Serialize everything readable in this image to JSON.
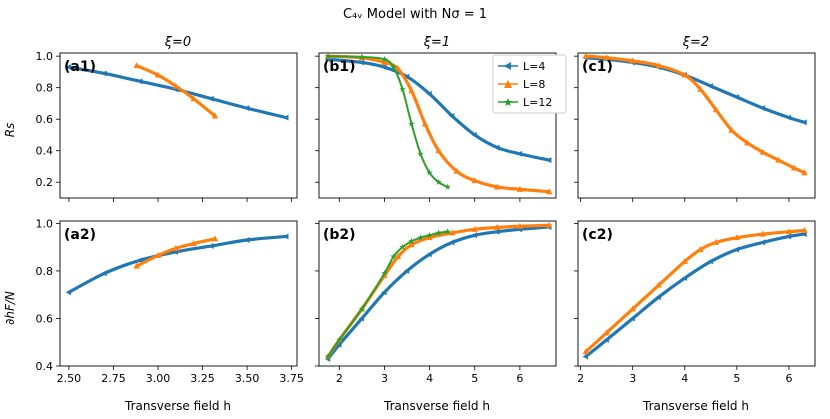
{
  "figure": {
    "title": "C₄ᵥ Model with Nσ = 1",
    "xlabel": "Transverse field h",
    "ylabel_top": "Rs",
    "ylabel_bottom": "∂hF/N",
    "legend": [
      "L=4",
      "L=8",
      "L=12"
    ]
  },
  "colors": {
    "L4": "#1f77b4",
    "L8": "#ff7f0e",
    "L12": "#2ca02c"
  },
  "chart_data": [
    {
      "type": "line",
      "panel": "(a1)",
      "column_title": "ξ=0",
      "ylabel": "Rs",
      "xlim": [
        2.45,
        3.78
      ],
      "ylim": [
        0.1,
        1.02
      ],
      "xticks": [
        2.5,
        2.75,
        3.0,
        3.25,
        3.5,
        3.75
      ],
      "yticks": [
        0.2,
        0.4,
        0.6,
        0.8,
        1.0
      ],
      "series": [
        {
          "name": "L=4",
          "x": [
            2.5,
            2.7,
            2.9,
            3.1,
            3.3,
            3.5,
            3.72
          ],
          "y": [
            0.93,
            0.89,
            0.84,
            0.79,
            0.73,
            0.67,
            0.61
          ]
        },
        {
          "name": "L=8",
          "x": [
            2.88,
            3.0,
            3.1,
            3.2,
            3.32
          ],
          "y": [
            0.94,
            0.88,
            0.81,
            0.73,
            0.62
          ]
        }
      ]
    },
    {
      "type": "line",
      "panel": "(b1)",
      "column_title": "ξ=1",
      "ylabel": "Rs",
      "xlim": [
        1.55,
        6.8
      ],
      "ylim": [
        0.1,
        1.02
      ],
      "xticks": [
        2,
        3,
        4,
        5,
        6
      ],
      "yticks": [
        0.2,
        0.4,
        0.6,
        0.8,
        1.0
      ],
      "legend_position": "top-right",
      "series": [
        {
          "name": "L=4",
          "x": [
            1.75,
            2.5,
            3.0,
            3.5,
            4.0,
            4.5,
            5.0,
            5.5,
            6.0,
            6.65
          ],
          "y": [
            0.98,
            0.96,
            0.93,
            0.87,
            0.76,
            0.62,
            0.5,
            0.42,
            0.38,
            0.34
          ]
        },
        {
          "name": "L=8",
          "x": [
            1.75,
            2.5,
            3.0,
            3.3,
            3.6,
            3.9,
            4.2,
            4.6,
            5.0,
            5.5,
            6.0,
            6.65
          ],
          "y": [
            1.0,
            0.99,
            0.96,
            0.92,
            0.78,
            0.57,
            0.4,
            0.27,
            0.21,
            0.17,
            0.155,
            0.14
          ]
        },
        {
          "name": "L=12",
          "x": [
            1.75,
            2.5,
            3.0,
            3.2,
            3.4,
            3.6,
            3.8,
            4.0,
            4.2,
            4.4
          ],
          "y": [
            1.0,
            0.995,
            0.98,
            0.93,
            0.79,
            0.57,
            0.38,
            0.26,
            0.2,
            0.17
          ]
        }
      ]
    },
    {
      "type": "line",
      "panel": "(c1)",
      "column_title": "ξ=2",
      "ylabel": "Rs",
      "xlim": [
        1.95,
        6.5
      ],
      "ylim": [
        0.1,
        1.02
      ],
      "xticks": [
        2,
        3,
        4,
        5,
        6
      ],
      "yticks": [
        0.2,
        0.4,
        0.6,
        0.8,
        1.0
      ],
      "series": [
        {
          "name": "L=4",
          "x": [
            2.1,
            2.5,
            3.0,
            3.5,
            4.0,
            4.5,
            5.0,
            5.5,
            6.0,
            6.3
          ],
          "y": [
            0.99,
            0.98,
            0.96,
            0.93,
            0.88,
            0.81,
            0.74,
            0.67,
            0.61,
            0.58
          ]
        },
        {
          "name": "L=8",
          "x": [
            2.1,
            2.5,
            3.0,
            3.5,
            4.0,
            4.3,
            4.6,
            4.9,
            5.2,
            5.5,
            5.8,
            6.1,
            6.3
          ],
          "y": [
            1.0,
            0.99,
            0.97,
            0.94,
            0.88,
            0.79,
            0.66,
            0.53,
            0.45,
            0.39,
            0.34,
            0.29,
            0.26
          ]
        }
      ]
    },
    {
      "type": "line",
      "panel": "(a2)",
      "ylabel": "∂hF/N",
      "xlim": [
        2.45,
        3.78
      ],
      "ylim": [
        0.4,
        1.01
      ],
      "xticks": [
        2.5,
        2.75,
        3.0,
        3.25,
        3.5,
        3.75
      ],
      "yticks": [
        0.4,
        0.6,
        0.8,
        1.0
      ],
      "series": [
        {
          "name": "L=4",
          "x": [
            2.5,
            2.7,
            2.9,
            3.1,
            3.3,
            3.5,
            3.72
          ],
          "y": [
            0.71,
            0.79,
            0.845,
            0.88,
            0.905,
            0.93,
            0.945
          ]
        },
        {
          "name": "L=8",
          "x": [
            2.88,
            3.0,
            3.1,
            3.2,
            3.32
          ],
          "y": [
            0.82,
            0.865,
            0.895,
            0.915,
            0.935
          ]
        }
      ]
    },
    {
      "type": "line",
      "panel": "(b2)",
      "ylabel": "∂hF/N",
      "xlim": [
        1.55,
        6.8
      ],
      "ylim": [
        0.4,
        1.01
      ],
      "xticks": [
        2,
        3,
        4,
        5,
        6
      ],
      "yticks": [
        0.4,
        0.6,
        0.8,
        1.0
      ],
      "series": [
        {
          "name": "L=4",
          "x": [
            1.75,
            2.0,
            2.5,
            3.0,
            3.5,
            4.0,
            4.5,
            5.0,
            5.5,
            6.0,
            6.65
          ],
          "y": [
            0.43,
            0.49,
            0.6,
            0.71,
            0.8,
            0.87,
            0.92,
            0.95,
            0.965,
            0.975,
            0.985
          ]
        },
        {
          "name": "L=8",
          "x": [
            1.75,
            2.0,
            2.5,
            3.0,
            3.3,
            3.6,
            4.0,
            4.5,
            5.0,
            5.5,
            6.0,
            6.65
          ],
          "y": [
            0.44,
            0.51,
            0.64,
            0.78,
            0.86,
            0.91,
            0.94,
            0.96,
            0.975,
            0.983,
            0.988,
            0.992
          ]
        },
        {
          "name": "L=12",
          "x": [
            1.75,
            2.0,
            2.5,
            3.0,
            3.2,
            3.4,
            3.6,
            3.8,
            4.0,
            4.2,
            4.4
          ],
          "y": [
            0.44,
            0.51,
            0.64,
            0.79,
            0.86,
            0.9,
            0.925,
            0.94,
            0.95,
            0.96,
            0.965
          ]
        }
      ]
    },
    {
      "type": "line",
      "panel": "(c2)",
      "ylabel": "∂hF/N",
      "xlim": [
        1.95,
        6.5
      ],
      "ylim": [
        0.4,
        1.01
      ],
      "xticks": [
        2,
        3,
        4,
        5,
        6
      ],
      "yticks": [
        0.4,
        0.6,
        0.8,
        1.0
      ],
      "series": [
        {
          "name": "L=4",
          "x": [
            2.1,
            2.5,
            3.0,
            3.5,
            4.0,
            4.5,
            5.0,
            5.5,
            6.0,
            6.3
          ],
          "y": [
            0.44,
            0.51,
            0.6,
            0.69,
            0.77,
            0.84,
            0.89,
            0.92,
            0.945,
            0.955
          ]
        },
        {
          "name": "L=8",
          "x": [
            2.1,
            2.5,
            3.0,
            3.5,
            4.0,
            4.3,
            4.6,
            5.0,
            5.5,
            6.0,
            6.3
          ],
          "y": [
            0.46,
            0.54,
            0.64,
            0.74,
            0.84,
            0.89,
            0.92,
            0.94,
            0.955,
            0.965,
            0.97
          ]
        }
      ]
    }
  ]
}
